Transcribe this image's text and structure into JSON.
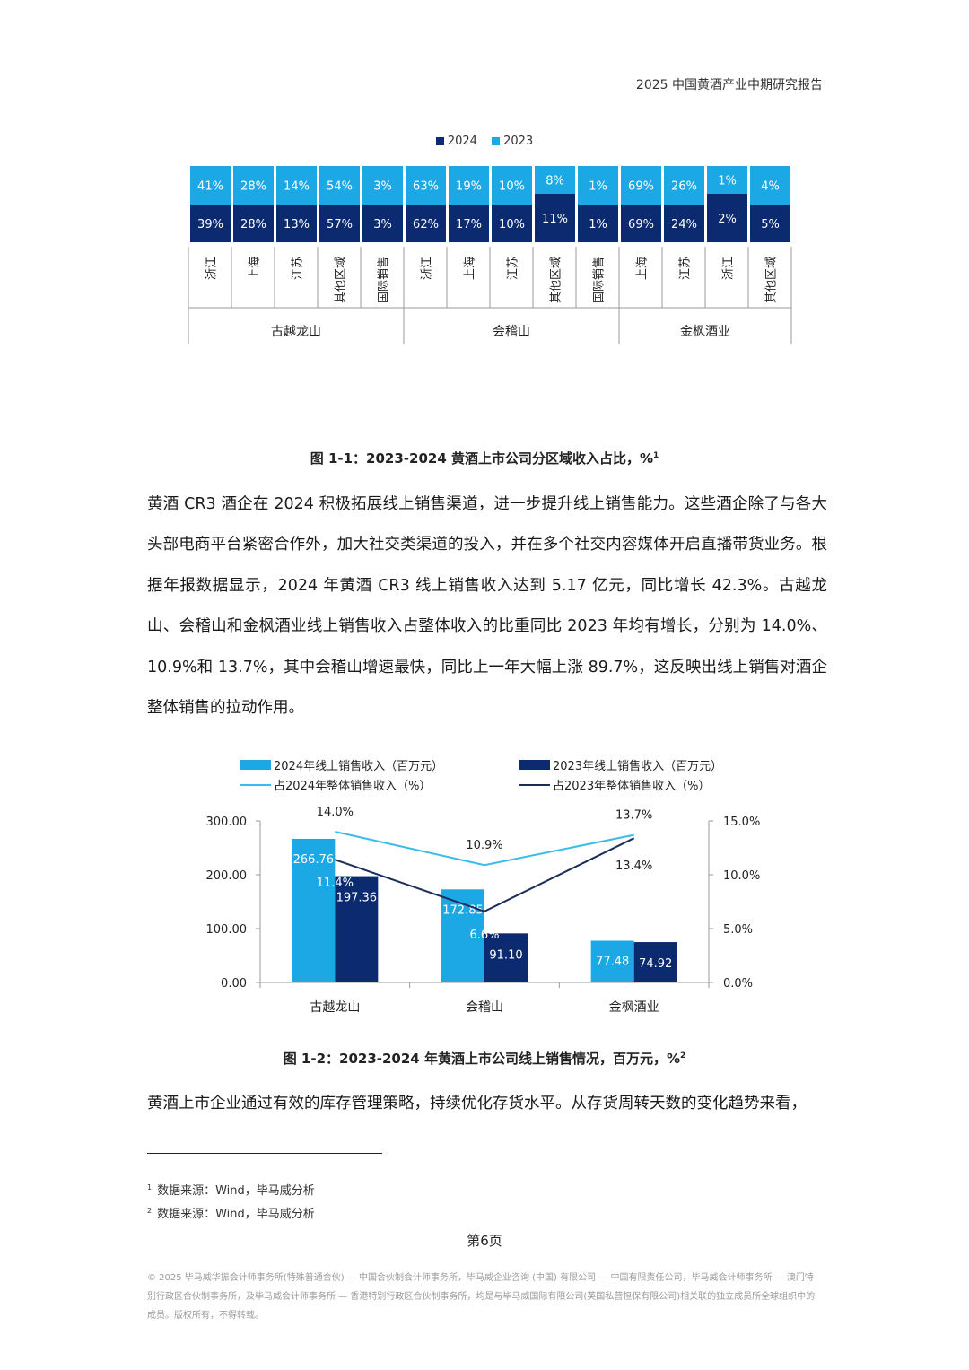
{
  "header": {
    "title": "2025 中国黄酒产业中期研究报告"
  },
  "figure1": {
    "caption": "图 1-1：2023-2024 黄酒上市公司分区域收入占比，%",
    "caption_sup": "1",
    "colors": {
      "2024": "#0b2a6f",
      "2023": "#1ba8e4"
    },
    "chart_data": {
      "type": "bar",
      "legend": [
        "2024",
        "2023"
      ],
      "groups": [
        {
          "name": "古越龙山",
          "categories": [
            "浙江",
            "上海",
            "江苏",
            "其他区域",
            "国际销售"
          ]
        },
        {
          "name": "会稽山",
          "categories": [
            "浙江",
            "上海",
            "江苏",
            "其他区域",
            "国际销售"
          ]
        },
        {
          "name": "金枫酒业",
          "categories": [
            "上海",
            "江苏",
            "浙江",
            "其他区域"
          ]
        }
      ],
      "series": [
        {
          "name": "2023",
          "values": [
            "41%",
            "28%",
            "14%",
            "54%",
            "3%",
            "63%",
            "19%",
            "10%",
            "8%",
            "1%",
            "69%",
            "26%",
            "1%",
            "4%"
          ]
        },
        {
          "name": "2024",
          "values": [
            "39%",
            "28%",
            "13%",
            "57%",
            "3%",
            "62%",
            "17%",
            "10%",
            "11%",
            "1%",
            "69%",
            "24%",
            "2%",
            "5%"
          ]
        }
      ]
    }
  },
  "paragraph1": "黄酒 CR3 酒企在 2024 积极拓展线上销售渠道，进一步提升线上销售能力。这些酒企除了与各大头部电商平台紧密合作外，加大社交类渠道的投入，并在多个社交内容媒体开启直播带货业务。根据年报数据显示，2024 年黄酒 CR3 线上销售收入达到 5.17 亿元，同比增长 42.3%。古越龙山、会稽山和金枫酒业线上销售收入占整体收入的比重同比 2023 年均有增长，分别为 14.0%、10.9%和 13.7%，其中会稽山增速最快，同比上一年大幅上涨 89.7%，这反映出线上销售对酒企整体销售的拉动作用。",
  "figure2": {
    "caption": "图 1-2：2023-2024 年黄酒上市公司线上销售情况，百万元，%",
    "caption_sup": "2",
    "colors": {
      "bar2024": "#1ba8e4",
      "bar2023": "#0b2a6f",
      "line2024": "#3bbbe8",
      "line2023": "#1c2d5c"
    },
    "chart_data": {
      "type": "bar",
      "categories": [
        "古越龙山",
        "会稽山",
        "金枫酒业"
      ],
      "series": [
        {
          "name": "2024年线上销售收入（百万元）",
          "kind": "bar",
          "values": [
            266.76,
            172.85,
            77.48
          ],
          "labels": [
            "266.76",
            "172.85",
            "77.48"
          ]
        },
        {
          "name": "2023年线上销售收入（百万元）",
          "kind": "bar",
          "values": [
            197.36,
            91.1,
            74.92
          ],
          "labels": [
            "197.36",
            "91.10",
            "74.92"
          ]
        },
        {
          "name": "占2024年整体销售收入（%）",
          "kind": "line",
          "axis": "right",
          "values": [
            14.0,
            10.9,
            13.7
          ],
          "labels": [
            "14.0%",
            "10.9%",
            "13.7%"
          ]
        },
        {
          "name": "占2023年整体销售收入（%）",
          "kind": "line",
          "axis": "right",
          "values": [
            11.4,
            6.6,
            13.4
          ],
          "labels": [
            "11.4%",
            "6.6%",
            "13.4%"
          ]
        }
      ],
      "ylim": [
        0,
        300
      ],
      "y2lim": [
        0,
        15
      ],
      "yticks": [
        "0.00",
        "100.00",
        "200.00",
        "300.00"
      ],
      "y2ticks": [
        "0.0%",
        "5.0%",
        "10.0%",
        "15.0%"
      ]
    }
  },
  "paragraph2": "黄酒上市企业通过有效的库存管理策略，持续优化存货水平。从存货周转天数的变化趋势来看，",
  "footnotes": [
    {
      "num": "1",
      "text": "数据来源：Wind，毕马威分析"
    },
    {
      "num": "2",
      "text": "数据来源：Wind，毕马威分析"
    }
  ],
  "page_number": "第6页",
  "legal": "© 2025 毕马威华振会计师事务所(特殊普通合伙) — 中国合伙制会计师事务所，毕马威企业咨询 (中国) 有限公司 — 中国有限责任公司，毕马威会计师事务所 — 澳门特别行政区合伙制事务所，及毕马威会计师事务所 — 香港特别行政区合伙制事务所，均是与毕马威国际有限公司(英国私营担保有限公司)相关联的独立成员所全球组织中的成员。版权所有，不得转载。"
}
